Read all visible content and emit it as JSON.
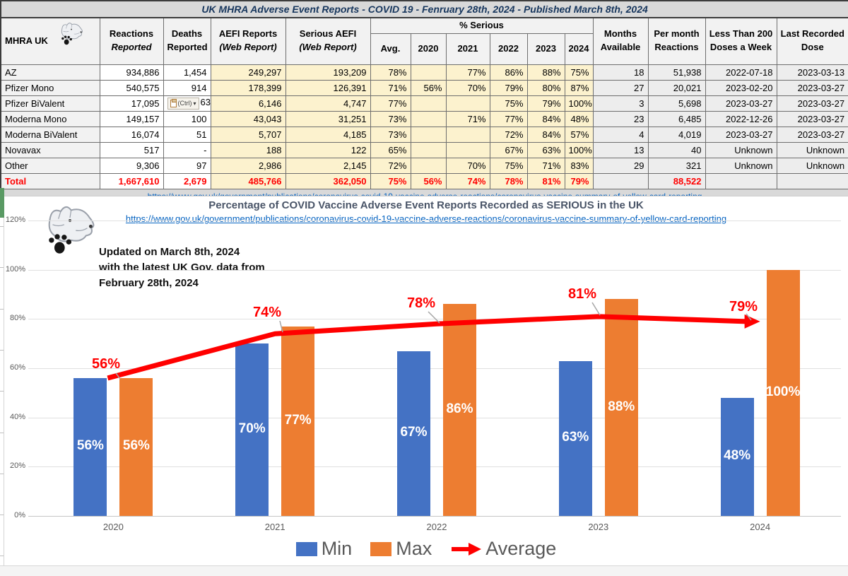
{
  "sheet": {
    "title": "UK MHRA Adverse Event Reports -  COVID 19 - Fenruary 28th, 2024 - Published March 8th, 2024",
    "source_url": "https://www.gov.uk/government/publications/coronavirus-covid-19-vaccine-adverse-reactions/coronavirus-vaccine-summary-of-yellow-card-reporting"
  },
  "table": {
    "corner_label": "MHRA UK",
    "headers": {
      "reactions": [
        "Reactions",
        "Reported"
      ],
      "deaths": [
        "Deaths",
        "Reported"
      ],
      "aefi": [
        "AEFI Reports",
        "(Web Report)"
      ],
      "serious": [
        "Serious AEFI",
        "(Web Report)"
      ],
      "pct_group": "% Serious",
      "pct_cols": [
        "Avg.",
        "2020",
        "2021",
        "2022",
        "2023",
        "2024"
      ],
      "months": [
        "Months",
        "Available"
      ],
      "per_month": [
        "Per month",
        "Reactions"
      ],
      "less200": [
        "Less Than 200",
        "Doses a Week"
      ],
      "last_dose": [
        "Last Recorded",
        "Dose"
      ]
    },
    "paste_tag_label": "(Ctrl)",
    "rows": [
      {
        "name": "AZ",
        "reactions": "934,886",
        "deaths": "1,454",
        "paste_tag": false,
        "aefi": "249,297",
        "serious": "193,209",
        "pct": [
          "78%",
          "",
          "77%",
          "86%",
          "88%",
          "75%"
        ],
        "months": "18",
        "per_month": "51,938",
        "less200": "2022-07-18",
        "last_dose": "2023-03-13"
      },
      {
        "name": "Pfizer Mono",
        "reactions": "540,575",
        "deaths": "914",
        "paste_tag": false,
        "aefi": "178,399",
        "serious": "126,391",
        "pct": [
          "71%",
          "56%",
          "70%",
          "79%",
          "80%",
          "87%"
        ],
        "months": "27",
        "per_month": "20,021",
        "less200": "2023-02-20",
        "last_dose": "2023-03-27"
      },
      {
        "name": "Pfizer BiValent",
        "reactions": "17,095",
        "deaths": "63",
        "paste_tag": true,
        "aefi": "6,146",
        "serious": "4,747",
        "pct": [
          "77%",
          "",
          "",
          "75%",
          "79%",
          "100%"
        ],
        "months": "3",
        "per_month": "5,698",
        "less200": "2023-03-27",
        "last_dose": "2023-03-27"
      },
      {
        "name": "Moderna Mono",
        "reactions": "149,157",
        "deaths": "100",
        "paste_tag": false,
        "aefi": "43,043",
        "serious": "31,251",
        "pct": [
          "73%",
          "",
          "71%",
          "77%",
          "84%",
          "48%"
        ],
        "months": "23",
        "per_month": "6,485",
        "less200": "2022-12-26",
        "last_dose": "2023-03-27"
      },
      {
        "name": "Moderna BiValent",
        "reactions": "16,074",
        "deaths": "51",
        "paste_tag": false,
        "aefi": "5,707",
        "serious": "4,185",
        "pct": [
          "73%",
          "",
          "",
          "72%",
          "84%",
          "57%"
        ],
        "months": "4",
        "per_month": "4,019",
        "less200": "2023-03-27",
        "last_dose": "2023-03-27"
      },
      {
        "name": "Novavax",
        "reactions": "517",
        "deaths": "-",
        "paste_tag": false,
        "aefi": "188",
        "serious": "122",
        "pct": [
          "65%",
          "",
          "",
          "67%",
          "63%",
          "100%"
        ],
        "months": "13",
        "per_month": "40",
        "less200": "Unknown",
        "last_dose": "Unknown"
      },
      {
        "name": "Other",
        "reactions": "9,306",
        "deaths": "97",
        "paste_tag": false,
        "aefi": "2,986",
        "serious": "2,145",
        "pct": [
          "72%",
          "",
          "70%",
          "75%",
          "71%",
          "83%"
        ],
        "months": "29",
        "per_month": "321",
        "less200": "Unknown",
        "last_dose": "Unknown"
      }
    ],
    "total_row": {
      "name": "Total",
      "reactions": "1,667,610",
      "deaths": "2,679",
      "aefi": "485,766",
      "serious": "362,050",
      "pct": [
        "75%",
        "56%",
        "74%",
        "78%",
        "81%",
        "79%"
      ],
      "months": "",
      "per_month": "88,522",
      "less200": "",
      "last_dose": ""
    }
  },
  "chart_data": {
    "type": "bar",
    "title": "Percentage of COVID Vaccine Adverse Event Reports Recorded as SERIOUS in the UK",
    "source_url": "https://www.gov.uk/government/publications/coronavirus-covid-19-vaccine-adverse-reactions/coronavirus-vaccine-summary-of-yellow-card-reporting",
    "annotation_lines": [
      "Updated on March 8th, 2024",
      "with the latest UK Gov. data from",
      "February 28th, 2024"
    ],
    "categories": [
      "2020",
      "2021",
      "2022",
      "2023",
      "2024"
    ],
    "series": [
      {
        "name": "Min",
        "type": "bar",
        "color": "#4472C4",
        "values": [
          56,
          70,
          67,
          63,
          48
        ]
      },
      {
        "name": "Max",
        "type": "bar",
        "color": "#ED7D31",
        "values": [
          56,
          77,
          86,
          88,
          100
        ]
      },
      {
        "name": "Average",
        "type": "line",
        "color": "#FF0000",
        "values": [
          56,
          74,
          78,
          81,
          79
        ]
      }
    ],
    "data_labels_pct": true,
    "avg_labels": [
      "56%",
      "74%",
      "78%",
      "81%",
      "79%"
    ],
    "y_ticks": [
      "0%",
      "20%",
      "40%",
      "60%",
      "80%",
      "100%",
      "120%"
    ],
    "ylim": [
      0,
      120
    ],
    "grid": true,
    "legend_position": "bottom",
    "legend": [
      "Min",
      "Max",
      "Average"
    ]
  }
}
